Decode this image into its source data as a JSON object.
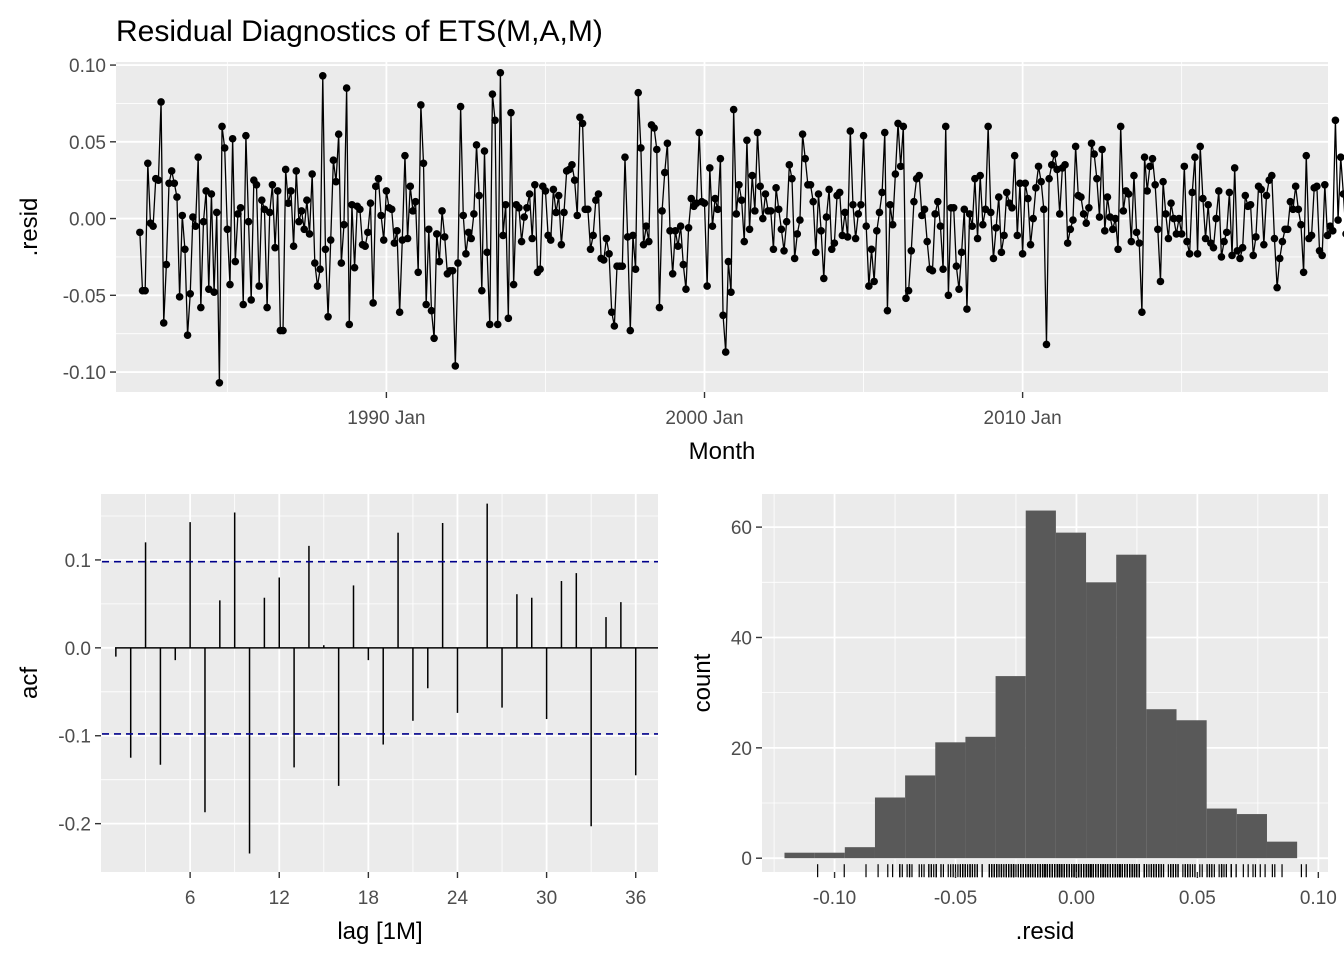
{
  "colors": {
    "panel_background": "#ebebeb",
    "grid_major": "#ffffff",
    "line": "#000000",
    "bound": "#00008b",
    "bar": "#595959",
    "tick_text": "#4d4d4d"
  },
  "title": "Residual Diagnostics of ETS(M,A,M)",
  "chart_data": [
    {
      "type": "line",
      "panel": "residuals",
      "xlabel": "Month",
      "ylabel": ".resid",
      "x_start": "1982 Apr",
      "x_end": "2018 Dec",
      "xlim": [
        1981.5,
        2019.6
      ],
      "ylim": [
        -0.113,
        0.102
      ],
      "x_ticks": [
        {
          "value": 1990.0,
          "label": "1990 Jan"
        },
        {
          "value": 2000.0,
          "label": "2000 Jan"
        },
        {
          "value": 2010.0,
          "label": "2010 Jan"
        }
      ],
      "y_ticks": [
        {
          "value": 0.1,
          "label": "0.10"
        },
        {
          "value": 0.05,
          "label": "0.05"
        },
        {
          "value": 0.0,
          "label": "0.00"
        },
        {
          "value": -0.05,
          "label": "-0.05"
        },
        {
          "value": -0.1,
          "label": "-0.10"
        }
      ],
      "grid": true,
      "values": [
        -0.009,
        -0.047,
        -0.047,
        0.036,
        -0.003,
        -0.005,
        0.026,
        0.025,
        0.076,
        -0.068,
        -0.03,
        0.023,
        0.031,
        0.023,
        0.014,
        -0.051,
        0.002,
        -0.02,
        -0.076,
        -0.049,
        0.001,
        -0.005,
        0.04,
        -0.058,
        -0.002,
        0.018,
        -0.046,
        0.016,
        -0.048,
        0.004,
        -0.107,
        0.06,
        0.046,
        -0.007,
        -0.043,
        0.052,
        -0.028,
        0.003,
        0.007,
        -0.056,
        0.054,
        -0.002,
        -0.053,
        0.025,
        0.022,
        -0.044,
        0.012,
        0.006,
        -0.058,
        0.004,
        0.022,
        -0.019,
        0.018,
        -0.073,
        -0.073,
        0.032,
        0.01,
        0.018,
        -0.018,
        0.031,
        -0.002,
        0.005,
        -0.007,
        0.012,
        -0.01,
        0.029,
        -0.029,
        -0.044,
        -0.033,
        0.093,
        -0.02,
        -0.064,
        -0.014,
        0.038,
        0.024,
        0.055,
        -0.029,
        -0.004,
        0.085,
        -0.069,
        0.009,
        -0.032,
        0.008,
        0.006,
        -0.017,
        -0.018,
        -0.009,
        0.01,
        -0.055,
        0.021,
        0.026,
        0.002,
        -0.014,
        0.018,
        0.007,
        0.006,
        -0.016,
        -0.008,
        -0.061,
        -0.014,
        0.041,
        -0.013,
        0.021,
        0.005,
        0.011,
        -0.035,
        0.074,
        0.036,
        -0.056,
        -0.007,
        -0.06,
        -0.078,
        -0.01,
        -0.028,
        0.005,
        -0.012,
        -0.036,
        -0.034,
        -0.034,
        -0.096,
        -0.029,
        0.073,
        0.002,
        -0.023,
        -0.009,
        -0.013,
        0.003,
        0.048,
        0.015,
        -0.047,
        0.044,
        -0.022,
        -0.069,
        0.081,
        0.064,
        -0.069,
        0.095,
        -0.011,
        0.009,
        -0.065,
        0.069,
        -0.043,
        0.009,
        0.007,
        -0.015,
        0.001,
        0.007,
        0.016,
        -0.013,
        0.022,
        -0.035,
        -0.033,
        0.021,
        0.018,
        -0.011,
        -0.014,
        0.019,
        0.004,
        0.015,
        -0.017,
        0.004,
        0.031,
        0.032,
        0.035,
        0.025,
        0.002,
        0.066,
        0.062,
        0.006,
        0.006,
        -0.02,
        -0.011,
        0.012,
        0.016,
        -0.026,
        -0.027,
        -0.013,
        -0.023,
        -0.061,
        -0.07,
        -0.031,
        -0.031,
        -0.031,
        0.04,
        -0.012,
        -0.073,
        -0.011,
        -0.033,
        0.082,
        0.046,
        -0.017,
        -0.005,
        -0.015,
        0.061,
        0.059,
        0.045,
        -0.058,
        0.005,
        0.03,
        0.049,
        -0.008,
        -0.036,
        -0.008,
        -0.018,
        -0.005,
        -0.03,
        -0.046,
        -0.006,
        0.013,
        0.008,
        0.01,
        0.056,
        0.011,
        0.01,
        -0.044,
        0.033,
        -0.005,
        0.013,
        0.006,
        0.039,
        -0.063,
        -0.087,
        -0.028,
        -0.048,
        0.071,
        0.003,
        0.022,
        0.012,
        -0.015,
        0.051,
        -0.007,
        0.028,
        0.005,
        0.056,
        0.021,
        0.0,
        0.016,
        0.005,
        0.005,
        -0.02,
        0.02,
        0.006,
        -0.007,
        -0.021,
        -0.002,
        0.035,
        0.026,
        -0.026,
        -0.01,
        -0.001,
        0.055,
        0.039,
        0.022,
        0.022,
        0.011,
        -0.022,
        0.016,
        -0.008,
        -0.039,
        0.001,
        0.019,
        -0.02,
        -0.016,
        0.015,
        0.017,
        -0.011,
        0.004,
        -0.012,
        0.057,
        0.009,
        -0.013,
        0.003,
        0.009,
        0.054,
        -0.005,
        -0.044,
        -0.02,
        -0.041,
        -0.008,
        0.004,
        0.017,
        0.056,
        -0.06,
        0.009,
        -0.004,
        0.029,
        0.062,
        0.034,
        0.06,
        -0.052,
        -0.047,
        -0.021,
        0.011,
        0.026,
        0.028,
        0.002,
        0.006,
        -0.015,
        -0.033,
        -0.034,
        0.003,
        0.011,
        -0.005,
        -0.033,
        0.06,
        -0.05,
        0.007,
        0.007,
        -0.031,
        -0.046,
        -0.022,
        0.006,
        -0.059,
        0.003,
        -0.005,
        0.026,
        -0.013,
        0.028,
        -0.004,
        0.006,
        0.06,
        0.004,
        -0.026,
        -0.006,
        0.014,
        -0.022,
        -0.011,
        0.017,
        0.01,
        0.007,
        0.041,
        -0.011,
        0.023,
        -0.023,
        0.023,
        0.013,
        -0.017,
        0.0,
        0.02,
        0.034,
        0.024,
        0.006,
        -0.082,
        0.026,
        0.035,
        0.042,
        0.032,
        0.003,
        0.033,
        0.035,
        -0.016,
        -0.007,
        -0.001,
        0.047,
        0.015,
        0.014,
        0.003,
        -0.003,
        0.007,
        0.049,
        0.042,
        0.026,
        0.001,
        0.045,
        -0.008,
        0.014,
        0.001,
        -0.007,
        0.0,
        -0.02,
        0.06,
        0.005,
        0.018,
        0.016,
        -0.015,
        0.028,
        -0.009,
        -0.016,
        -0.061,
        0.04,
        0.018,
        0.034,
        0.039,
        0.022,
        -0.007,
        -0.041,
        0.024,
        0.003,
        -0.013,
        0.01,
        0.0,
        -0.01,
        0.0,
        -0.01,
        0.034,
        -0.015,
        -0.023,
        0.017,
        0.04,
        -0.023,
        0.047,
        0.013,
        -0.013,
        0.009,
        -0.016,
        -0.019,
        0.0,
        0.018,
        -0.025,
        -0.015,
        -0.009,
        0.017,
        -0.024,
        0.033,
        -0.021,
        -0.026,
        -0.019,
        0.015,
        0.008,
        0.009,
        -0.024,
        -0.012,
        0.021,
        0.019,
        -0.017,
        0.015,
        0.025,
        0.028,
        -0.013,
        -0.045,
        -0.026,
        -0.015,
        -0.007,
        -0.007,
        0.011,
        0.006,
        0.021,
        0.006,
        -0.004,
        -0.035,
        0.041,
        -0.013,
        -0.011,
        0.02,
        0.021,
        -0.021,
        -0.024,
        0.022,
        -0.011,
        -0.005,
        -0.008,
        0.064,
        -0.001,
        0.04,
        0.016,
        -0.01,
        0.005,
        0.028,
        -0.003,
        0.009,
        0.013,
        -0.017,
        -0.027,
        0.039,
        -0.028,
        -0.027,
        -0.012,
        0.015,
        0.004,
        -0.005,
        0.008,
        0.013,
        -0.009,
        -0.027,
        -0.014,
        -0.029,
        -0.042,
        0.066,
        0.001,
        0.025,
        0.007,
        -0.016,
        0.01,
        0.013,
        0.009,
        0.064,
        -0.016,
        -0.036,
        -0.039,
        -0.011,
        0.003,
        -0.014,
        -0.002,
        -0.006,
        0.032,
        -0.011,
        0.007,
        0.017,
        0.001,
        -0.033,
        -0.033,
        -0.022,
        -0.003,
        0.022,
        0.007,
        -0.008,
        -0.004,
        0.025,
        0.033,
        -0.018,
        -0.007,
        0.002,
        -0.032,
        -0.026,
        0.013,
        -0.051,
        0.012,
        0.028,
        0.002,
        -0.008,
        -0.009,
        0.004,
        -0.019,
        -0.008,
        0.019,
        0.023,
        0.078,
        -0.026,
        -0.042,
        -0.007,
        0.022,
        0.016,
        0.014,
        0.009,
        -0.01,
        0.024,
        -0.022,
        -0.035,
        0.046,
        -0.015,
        0.011,
        0.034,
        -0.006,
        0.011,
        -0.026,
        0.017,
        0.021,
        0.015,
        0.045,
        -0.001,
        0.005,
        0.012,
        0.024,
        0.014,
        -0.014,
        0.013,
        0.022,
        -0.007,
        -0.005,
        -0.006,
        -0.014,
        0.028,
        0.028,
        0.009,
        -0.012,
        0.019,
        -0.008,
        -0.008,
        0.022,
        0.007,
        -0.058,
        0.018,
        0.02,
        -0.001,
        -0.026,
        0.018,
        0.031,
        0.042,
        0.001,
        -0.026,
        -0.072
      ]
    },
    {
      "type": "bar",
      "panel": "acf",
      "xlabel": "lag [1M]",
      "ylabel": "acf",
      "xlim": [
        0,
        37.5
      ],
      "ylim": [
        -0.255,
        0.175
      ],
      "x_ticks": [
        6,
        12,
        18,
        24,
        30,
        36
      ],
      "y_ticks": [
        {
          "value": 0.1,
          "label": "0.1"
        },
        {
          "value": 0.0,
          "label": "0.0"
        },
        {
          "value": -0.1,
          "label": "-0.1"
        },
        {
          "value": -0.2,
          "label": "-0.2"
        }
      ],
      "grid": true,
      "lags": [
        1,
        2,
        3,
        4,
        5,
        6,
        7,
        8,
        9,
        10,
        11,
        12,
        13,
        14,
        15,
        16,
        17,
        18,
        19,
        20,
        21,
        22,
        23,
        24,
        25,
        26,
        27,
        28,
        29,
        30,
        31,
        32,
        33,
        34,
        35,
        36
      ],
      "values": [
        -0.01,
        -0.125,
        0.12,
        -0.133,
        -0.014,
        0.143,
        -0.187,
        0.054,
        0.154,
        -0.234,
        0.057,
        0.08,
        -0.136,
        0.116,
        0.003,
        -0.157,
        0.071,
        -0.014,
        -0.11,
        0.131,
        -0.083,
        -0.046,
        0.142,
        -0.074,
        0.0,
        0.164,
        -0.068,
        0.061,
        0.057,
        -0.081,
        0.076,
        0.085,
        -0.203,
        0.035,
        0.052,
        -0.145
      ],
      "bounds": [
        0.098,
        -0.098
      ]
    },
    {
      "type": "bar",
      "panel": "histogram",
      "xlabel": ".resid",
      "ylabel": "count",
      "xlim": [
        -0.13,
        0.104
      ],
      "ylim": [
        -2.5,
        66.0
      ],
      "x_ticks": [
        {
          "value": -0.1,
          "label": "-0.10"
        },
        {
          "value": -0.05,
          "label": "-0.05"
        },
        {
          "value": 0.0,
          "label": "0.00"
        },
        {
          "value": 0.05,
          "label": "0.05"
        },
        {
          "value": 0.1,
          "label": "0.10"
        }
      ],
      "y_ticks": [
        0,
        20,
        40,
        60
      ],
      "grid": true,
      "bin_start": -0.1207,
      "bin_width": 0.012467,
      "counts": [
        1,
        1,
        2,
        11,
        15,
        21,
        22,
        33,
        63,
        59,
        50,
        55,
        27,
        25,
        9,
        8,
        3
      ],
      "rug": "residual values"
    }
  ]
}
